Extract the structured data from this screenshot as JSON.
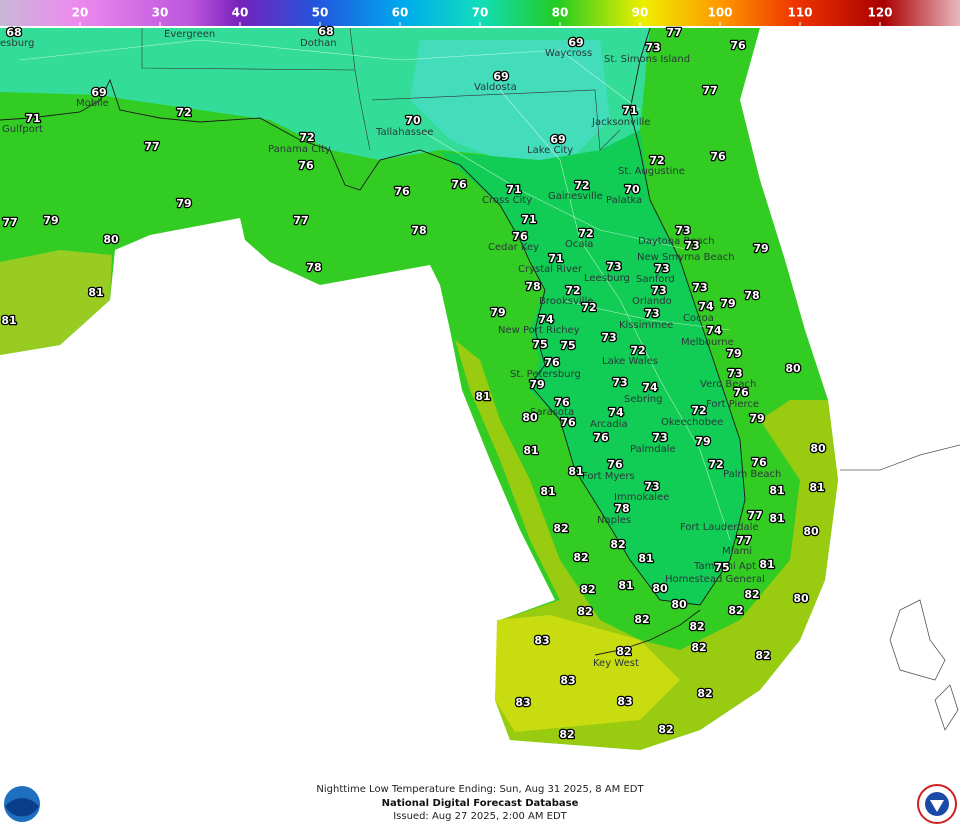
{
  "colorbar": {
    "range": [
      10,
      130
    ],
    "ticks": [
      20,
      30,
      40,
      50,
      60,
      70,
      80,
      90,
      100,
      110,
      120
    ]
  },
  "cities": [
    "esburg",
    "Evergreen",
    "Dothan",
    "Waycross",
    "St. Simons Island",
    "Valdosta",
    "Mobile",
    "Gulfport",
    "Jacksonville",
    "Tallahassee",
    "Panama City",
    "Lake City",
    "St. Augustine",
    "Gainesville",
    "Palatka",
    "Cross City",
    "Ocala",
    "Daytona Beach",
    "Cedar Key",
    "New Smyrna Beach",
    "Crystal River",
    "Leesburg",
    "Sanford",
    "Brooksville",
    "Orlando",
    "New Port Richey",
    "Kissimmee",
    "Cocoa",
    "Melbourne",
    "Lake Wales",
    "St. Petersburg",
    "Vero Beach",
    "Sebring",
    "Fort Pierce",
    "Sarasota",
    "Arcadia",
    "Okeechobee",
    "Palmdale",
    "Palm Beach",
    "Fort Myers",
    "Immokalee",
    "Naples",
    "Fort Lauderdale",
    "Miami",
    "Tamiami Apt",
    "Homestead General",
    "Key West"
  ],
  "temperatures": [
    68,
    68,
    69,
    73,
    77,
    76,
    69,
    77,
    69,
    72,
    71,
    71,
    72,
    69,
    77,
    76,
    70,
    72,
    76,
    76,
    76,
    71,
    72,
    70,
    77,
    79,
    79,
    77,
    71,
    78,
    76,
    72,
    73,
    73,
    80,
    79,
    71,
    73,
    73,
    78,
    73,
    78,
    72,
    73,
    74,
    79,
    78,
    81,
    79,
    72,
    73,
    74,
    81,
    74,
    73,
    75,
    75,
    72,
    79,
    76,
    73,
    80,
    79,
    73,
    74,
    76,
    81,
    76,
    80,
    74,
    72,
    79,
    76,
    76,
    73,
    79,
    80,
    81,
    76,
    72,
    76,
    81,
    73,
    81,
    81,
    81,
    78,
    77,
    81,
    80,
    82,
    77,
    82,
    82,
    81,
    75,
    81,
    82,
    81,
    80,
    82,
    80,
    80,
    82,
    82,
    82,
    82,
    83,
    82,
    82,
    82,
    83,
    82,
    83,
    83,
    82,
    82
  ],
  "footer": {
    "line1": "Nighttime Low Temperature Ending: Sun, Aug 31 2025, 8 AM EDT",
    "line2": "National Digital Forecast Database",
    "line3": "Issued: Aug 27 2025, 2:00 AM EDT"
  }
}
